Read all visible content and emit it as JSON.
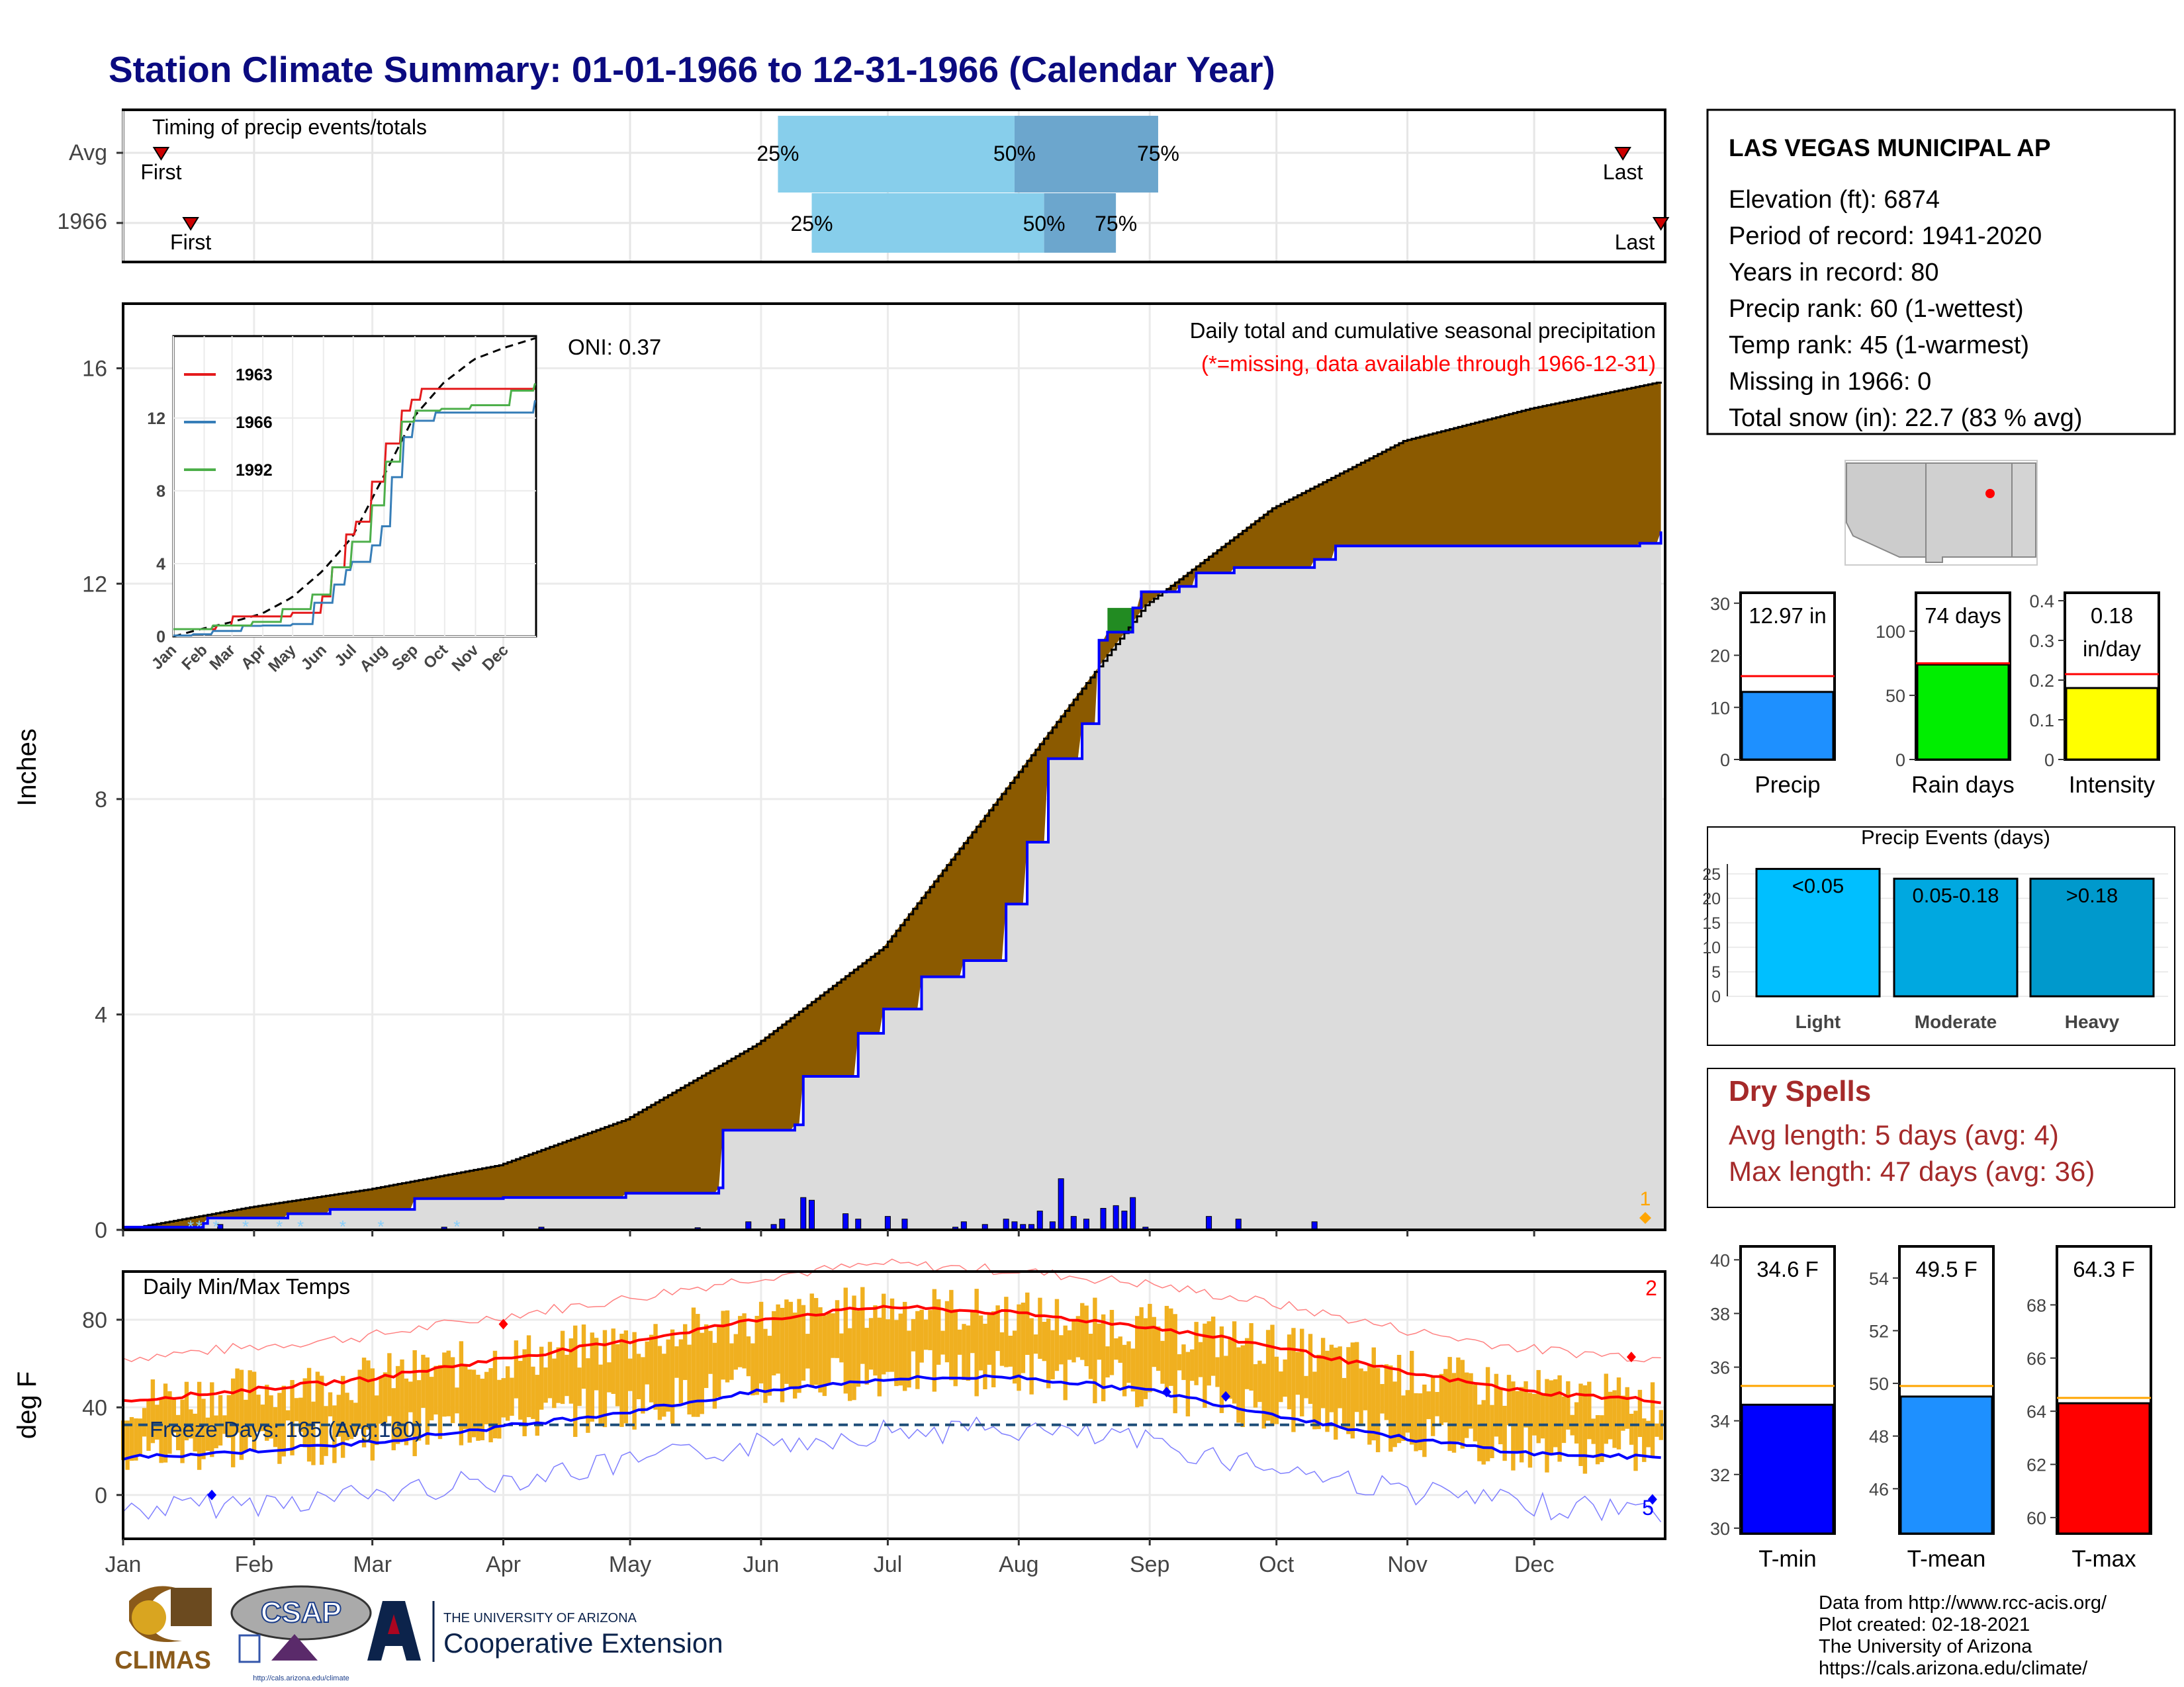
{
  "title": "Station Climate Summary: 01-01-1966 to 12-31-1966 (Calendar Year)",
  "months": [
    "Jan",
    "Feb",
    "Mar",
    "Apr",
    "May",
    "Jun",
    "Jul",
    "Aug",
    "Sep",
    "Oct",
    "Nov",
    "Dec"
  ],
  "timing": {
    "title": "Timing of precip events/totals",
    "rows": [
      {
        "label": "Avg",
        "first_day": 10,
        "last_day": 356,
        "p25": 156,
        "p50": 212,
        "p75": 246,
        "first_label": "First",
        "last_label": "Last",
        "p25_label": "25%",
        "p50_label": "50%",
        "p75_label": "75%"
      },
      {
        "label": "1966",
        "first_day": 17,
        "last_day": 365,
        "p25": 164,
        "p50": 219,
        "p75": 236,
        "first_label": "First",
        "last_label": "Last",
        "p25_label": "25%",
        "p50_label": "50%",
        "p75_label": "75%"
      }
    ]
  },
  "station": {
    "name": "LAS VEGAS MUNICIPAL AP",
    "lines": [
      "Elevation (ft): 6874",
      "Period of record: 1941-2020",
      "Years in record: 80",
      "Precip rank: 60 (1-wettest)",
      "Temp rank: 45 (1-warmest)",
      "Missing in 1966: 0",
      "Total snow (in): 22.7 (83 % avg)"
    ]
  },
  "chart_data": [
    {
      "type": "area",
      "name": "cumulative-precip",
      "annotation": "Daily total and cumulative seasonal precipitation",
      "missing_note": "(*=missing, data available through 1966-12-31)",
      "oni_label": "ONI: 0.37",
      "ylabel": "Inches",
      "ylim": [
        0,
        17.2
      ],
      "yticks": [
        0,
        4,
        8,
        12,
        16
      ],
      "avg_cumulative": {
        "day": [
          1,
          31,
          59,
          90,
          120,
          151,
          181,
          212,
          243,
          273,
          304,
          334,
          365
        ],
        "inches": [
          0,
          0.42,
          0.75,
          1.2,
          2.05,
          3.45,
          5.25,
          8.4,
          11.6,
          13.4,
          14.65,
          15.25,
          15.75
        ]
      },
      "year_cumulative": {
        "day": [
          1,
          20,
          21,
          40,
          50,
          70,
          91,
          120,
          142,
          143,
          160,
          162,
          175,
          181,
          190,
          200,
          210,
          215,
          220,
          228,
          232,
          234,
          240,
          242,
          251,
          255,
          264,
          283,
          288,
          360,
          365
        ],
        "inches": [
          0.05,
          0.12,
          0.22,
          0.3,
          0.38,
          0.58,
          0.6,
          0.68,
          0.78,
          1.85,
          1.95,
          2.85,
          3.65,
          4.1,
          4.7,
          5.0,
          6.05,
          7.2,
          8.75,
          9.4,
          10.95,
          11.1,
          11.55,
          11.85,
          11.95,
          12.2,
          12.3,
          12.45,
          12.7,
          12.75,
          12.97
        ]
      },
      "daily": {
        "day": [
          24,
          77,
          100,
          137,
          149,
          155,
          157,
          162,
          164,
          172,
          175,
          182,
          186,
          198,
          200,
          205,
          210,
          212,
          214,
          216,
          218,
          221,
          223,
          226,
          229,
          233,
          236,
          238,
          240,
          243,
          258,
          265,
          283
        ],
        "inches": [
          0.1,
          0.05,
          0.05,
          0.04,
          0.15,
          0.1,
          0.2,
          0.6,
          0.55,
          0.3,
          0.2,
          0.25,
          0.2,
          0.05,
          0.15,
          0.1,
          0.2,
          0.15,
          0.1,
          0.1,
          0.35,
          0.15,
          0.95,
          0.25,
          0.2,
          0.4,
          0.45,
          0.35,
          0.6,
          0.05,
          0.25,
          0.2,
          0.15
        ]
      },
      "snow_days": [
        17,
        19,
        23,
        30,
        38,
        43,
        53,
        62,
        80
      ],
      "marker_label": "1",
      "inset": {
        "yticks": [
          0,
          4,
          8,
          12
        ],
        "ylim": [
          0,
          16.5
        ],
        "series": [
          {
            "name": "1963",
            "color": "#e41a1c",
            "day": [
              1,
              45,
              60,
              120,
              150,
              160,
              175,
              185,
              200,
              215,
              230,
              240,
              250,
              365
            ],
            "inches": [
              0.4,
              0.6,
              1.1,
              1.3,
              2.2,
              3.8,
              5.6,
              6.3,
              8.5,
              10.6,
              12.4,
              13.0,
              13.6,
              13.6
            ]
          },
          {
            "name": "1966",
            "color": "#377eb8",
            "day": [
              1,
              20,
              40,
              70,
              91,
              120,
              143,
              162,
              175,
              181,
              200,
              210,
              220,
              232,
              243,
              264,
              365
            ],
            "inches": [
              0.05,
              0.12,
              0.3,
              0.58,
              0.6,
              0.68,
              1.85,
              2.85,
              3.65,
              4.1,
              5.0,
              6.05,
              8.75,
              10.95,
              11.85,
              12.3,
              12.97
            ]
          },
          {
            "name": "1992",
            "color": "#4daf4a",
            "day": [
              1,
              40,
              80,
              110,
              140,
              160,
              180,
              200,
              215,
              230,
              245,
              270,
              300,
              340,
              365
            ],
            "inches": [
              0.4,
              0.6,
              0.8,
              1.5,
              2.3,
              3.8,
              5.2,
              7.2,
              9.6,
              11.8,
              12.4,
              12.5,
              12.7,
              13.5,
              13.9
            ]
          }
        ]
      }
    },
    {
      "type": "line",
      "name": "daily-temps",
      "title": "Daily Min/Max Temps",
      "ylabel": "deg F",
      "ylim": [
        -20,
        102
      ],
      "yticks": [
        0,
        40,
        80
      ],
      "freeze_label": "Freeze Days: 165 (Avg:160)",
      "freeze_line_f": 32,
      "avg_max": {
        "day": [
          1,
          31,
          59,
          90,
          120,
          151,
          181,
          212,
          243,
          273,
          304,
          334,
          365
        ],
        "temp": [
          43,
          48,
          53,
          62,
          70,
          80,
          86,
          83,
          77,
          68,
          56,
          47,
          43
        ]
      },
      "avg_min": {
        "day": [
          1,
          31,
          59,
          90,
          120,
          151,
          181,
          212,
          243,
          273,
          304,
          334,
          365
        ],
        "temp": [
          17,
          20,
          24,
          31,
          38,
          47,
          53,
          54,
          48,
          37,
          26,
          19,
          17
        ]
      },
      "record_high_count": "2",
      "record_low_count": "5"
    },
    {
      "type": "bar",
      "name": "precip-gauges",
      "gauges": [
        {
          "label": "Precip",
          "value_label": "12.97 in",
          "value": 12.97,
          "avg": 16.0,
          "ymax": 32,
          "yticks": [
            0,
            10,
            20,
            30
          ],
          "color": "#1e90ff"
        },
        {
          "label": "Rain days",
          "value_label": "74 days",
          "value": 74,
          "avg": 75,
          "ymax": 130,
          "yticks": [
            0,
            50,
            100
          ],
          "color": "#00ee00"
        },
        {
          "label": "Intensity",
          "value_label": "0.18",
          "value_label2": "in/day",
          "value": 0.18,
          "avg": 0.215,
          "ymax": 0.42,
          "yticks": [
            0.0,
            0.1,
            0.2,
            0.3,
            0.4
          ],
          "color": "#ffff00"
        }
      ]
    },
    {
      "type": "bar",
      "name": "precip-events",
      "title": "Precip Events (days)",
      "categories": [
        "Light",
        "Moderate",
        "Heavy"
      ],
      "bar_labels": [
        "<0.05",
        "0.05-0.18",
        ">0.18"
      ],
      "values": [
        26,
        24,
        24
      ],
      "ylim": [
        0,
        27
      ],
      "yticks": [
        0,
        5,
        10,
        15,
        20,
        25
      ],
      "colors": [
        "#00bfff",
        "#00a8e0",
        "#0099cc"
      ]
    },
    {
      "type": "bar",
      "name": "temp-gauges",
      "gauges": [
        {
          "label": "T-min",
          "value_label": "34.6 F",
          "value": 34.6,
          "avg": 35.3,
          "ymin": 29.8,
          "ymax": 40.5,
          "yticks": [
            30,
            32,
            34,
            36,
            38,
            40
          ],
          "color": "#0000ff"
        },
        {
          "label": "T-mean",
          "value_label": "49.5 F",
          "value": 49.5,
          "avg": 49.9,
          "ymin": 44.3,
          "ymax": 55.2,
          "yticks": [
            46,
            48,
            50,
            52,
            54
          ],
          "color": "#1e90ff"
        },
        {
          "label": "T-max",
          "value_label": "64.3 F",
          "value": 64.3,
          "avg": 64.5,
          "ymin": 59.4,
          "ymax": 70.2,
          "yticks": [
            60,
            62,
            64,
            66,
            68
          ],
          "color": "#ff0000"
        }
      ]
    }
  ],
  "dry_spells": {
    "title": "Dry Spells",
    "line1": "Avg length: 5 days (avg: 4)",
    "line2": "Max length: 47 days (avg: 36)"
  },
  "footer": {
    "lines": [
      "Data from http://www.rcc-acis.org/",
      "Plot created: 02-18-2021",
      "The University of Arizona",
      "https://cals.arizona.edu/climate/"
    ],
    "climas": "CLIMAS",
    "csap": "CSAP",
    "csap_url": "http://cals.arizona.edu/climate",
    "ua_small": "THE UNIVERSITY OF ARIZONA",
    "ua_big": "Cooperative Extension"
  }
}
